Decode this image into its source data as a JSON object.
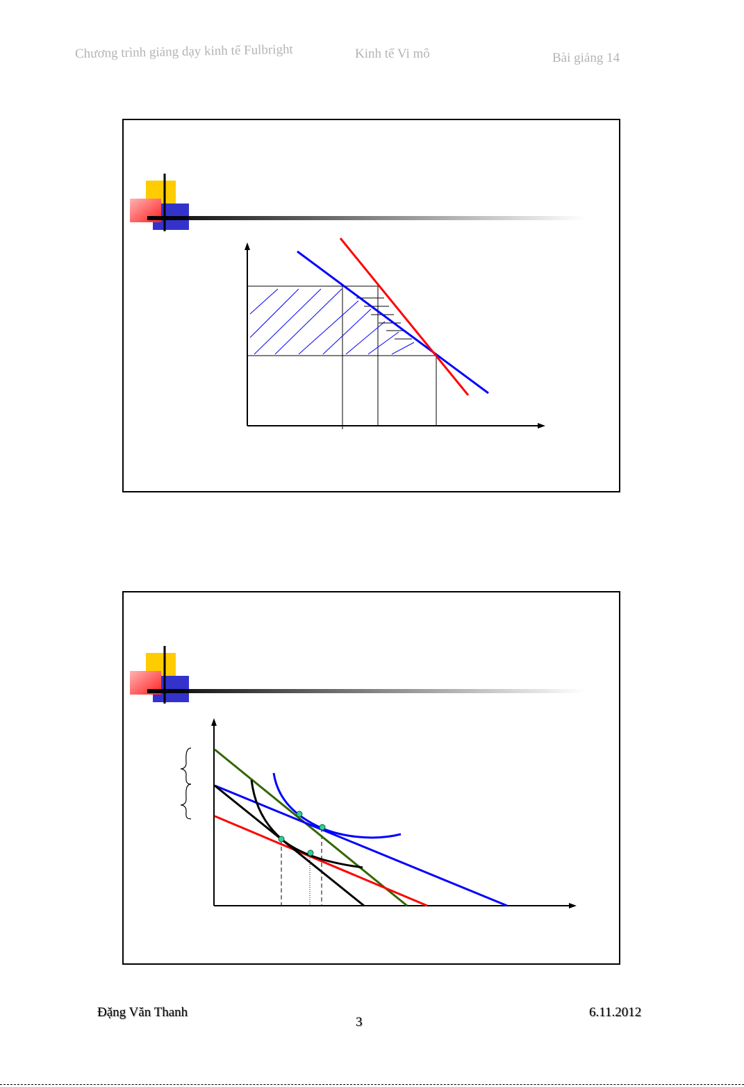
{
  "header": {
    "program": "Chương trình giảng dạy kinh tế Fulbright",
    "course": "Kinh tế Vi mô",
    "lecture": "Bài giảng 14"
  },
  "footer": {
    "author": "Đặng Văn Thanh",
    "page_number": "3",
    "date": "6.11.2012"
  },
  "colors": {
    "deco_yellow": "#ffcc00",
    "deco_red": "#ff3333",
    "deco_blue": "#3333cc",
    "blue_line": "#0000ff",
    "red_line": "#ff0000",
    "green_line": "#336600",
    "black_line": "#000000",
    "point_fill": "#33cc99"
  },
  "slides": [
    {
      "title": "",
      "diagram_icons": [
        "slide-bullet-decoration",
        "title-underline"
      ],
      "diagram_labels": []
    },
    {
      "title": "",
      "diagram_icons": [
        "slide-bullet-decoration",
        "title-underline",
        "curly-brace-icon"
      ],
      "diagram_labels": []
    }
  ]
}
